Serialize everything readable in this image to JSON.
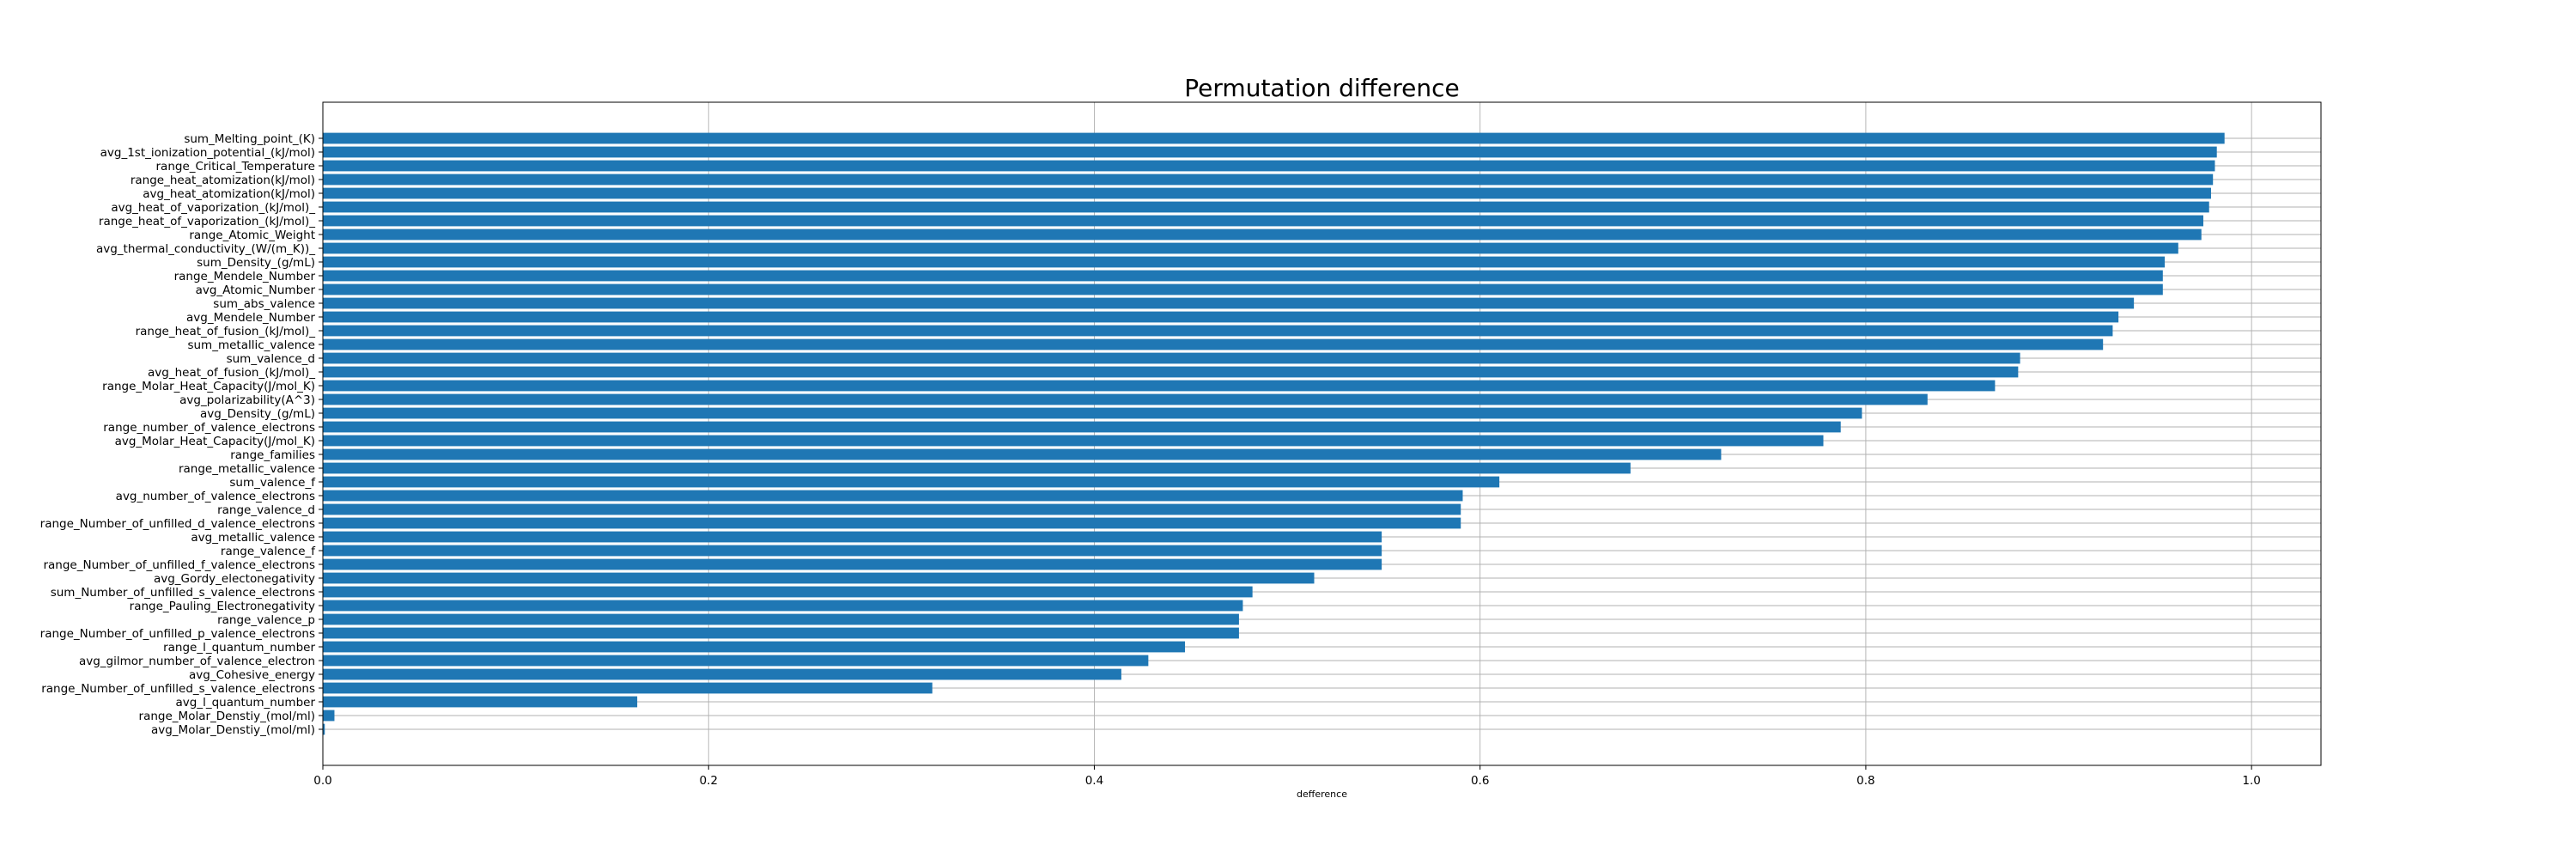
{
  "chart_data": {
    "type": "bar",
    "orientation": "horizontal",
    "title": "Permutation difference",
    "xlabel": "defference",
    "ylabel": "",
    "xlim": [
      0.0,
      1.036
    ],
    "xticks": [
      "0.0",
      "0.2",
      "0.4",
      "0.6",
      "0.8",
      "1.0"
    ],
    "grid": true,
    "bar_color": "#1f77b4",
    "categories": [
      "sum_Melting_point_(K)",
      "avg_1st_ionization_potential_(kJ/mol)",
      "range_Critical_Temperature",
      "range_heat_atomization(kJ/mol)",
      "avg_heat_atomization(kJ/mol)",
      "avg_heat_of_vaporization_(kJ/mol)_",
      "range_heat_of_vaporization_(kJ/mol)_",
      "range_Atomic_Weight",
      "avg_thermal_conductivity_(W/(m_K))_",
      "sum_Density_(g/mL)",
      "range_Mendele_Number",
      "avg_Atomic_Number",
      "sum_abs_valence",
      "avg_Mendele_Number",
      "range_heat_of_fusion_(kJ/mol)_",
      "sum_metallic_valence",
      "sum_valence_d",
      "avg_heat_of_fusion_(kJ/mol)_",
      "range_Molar_Heat_Capacity(J/mol_K)",
      "avg_polarizability(A^3)",
      "avg_Density_(g/mL)",
      "range_number_of_valence_electrons",
      "avg_Molar_Heat_Capacity(J/mol_K)",
      "range_families",
      "range_metallic_valence",
      "sum_valence_f",
      "avg_number_of_valence_electrons",
      "range_valence_d",
      "range_Number_of_unfilled_d_valence_electrons",
      "avg_metallic_valence",
      "range_valence_f",
      "range_Number_of_unfilled_f_valence_electrons",
      "avg_Gordy_electonegativity",
      "sum_Number_of_unfilled_s_valence_electrons",
      "range_Pauling_Electronegativity",
      "range_valence_p",
      "range_Number_of_unfilled_p_valence_electrons",
      "range_l_quantum_number",
      "avg_gilmor_number_of_valence_electron",
      "avg_Cohesive_energy",
      "range_Number_of_unfilled_s_valence_electrons",
      "avg_l_quantum_number",
      "range_Molar_Denstiy_(mol/ml)",
      "avg_Molar_Denstiy_(mol/ml)"
    ],
    "values": [
      0.986,
      0.982,
      0.981,
      0.98,
      0.979,
      0.978,
      0.975,
      0.974,
      0.962,
      0.955,
      0.954,
      0.954,
      0.939,
      0.931,
      0.928,
      0.923,
      0.88,
      0.879,
      0.867,
      0.832,
      0.798,
      0.787,
      0.778,
      0.725,
      0.678,
      0.61,
      0.591,
      0.59,
      0.59,
      0.549,
      0.549,
      0.549,
      0.514,
      0.482,
      0.477,
      0.475,
      0.475,
      0.447,
      0.428,
      0.414,
      0.316,
      0.163,
      0.006,
      0.001
    ]
  }
}
